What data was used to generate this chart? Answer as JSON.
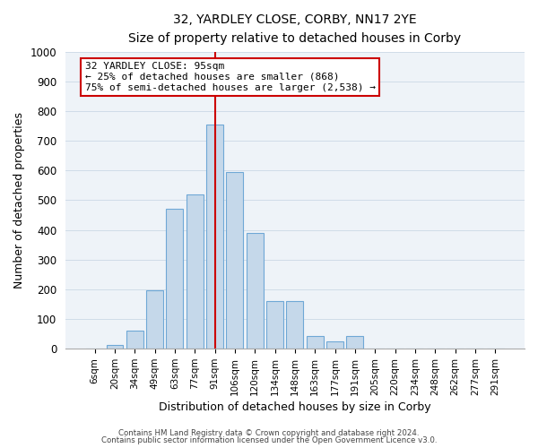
{
  "title": "32, YARDLEY CLOSE, CORBY, NN17 2YE",
  "subtitle": "Size of property relative to detached houses in Corby",
  "xlabel": "Distribution of detached houses by size in Corby",
  "ylabel": "Number of detached properties",
  "bar_labels": [
    "6sqm",
    "20sqm",
    "34sqm",
    "49sqm",
    "63sqm",
    "77sqm",
    "91sqm",
    "106sqm",
    "120sqm",
    "134sqm",
    "148sqm",
    "163sqm",
    "177sqm",
    "191sqm",
    "205sqm",
    "220sqm",
    "234sqm",
    "248sqm",
    "262sqm",
    "277sqm",
    "291sqm"
  ],
  "bar_values": [
    0,
    13,
    62,
    197,
    470,
    520,
    755,
    596,
    390,
    160,
    160,
    42,
    25,
    43,
    0,
    0,
    0,
    0,
    0,
    0,
    0
  ],
  "bar_color": "#c5d8ea",
  "bar_edge_color": "#6fa8d6",
  "vline_x": 6,
  "vline_color": "#cc0000",
  "ylim": [
    0,
    1000
  ],
  "yticks": [
    0,
    100,
    200,
    300,
    400,
    500,
    600,
    700,
    800,
    900,
    1000
  ],
  "annotation_title": "32 YARDLEY CLOSE: 95sqm",
  "annotation_line1": "← 25% of detached houses are smaller (868)",
  "annotation_line2": "75% of semi-detached houses are larger (2,538) →",
  "annotation_box_color": "#ffffff",
  "annotation_box_edge": "#cc0000",
  "footer1": "Contains HM Land Registry data © Crown copyright and database right 2024.",
  "footer2": "Contains public sector information licensed under the Open Government Licence v3.0."
}
